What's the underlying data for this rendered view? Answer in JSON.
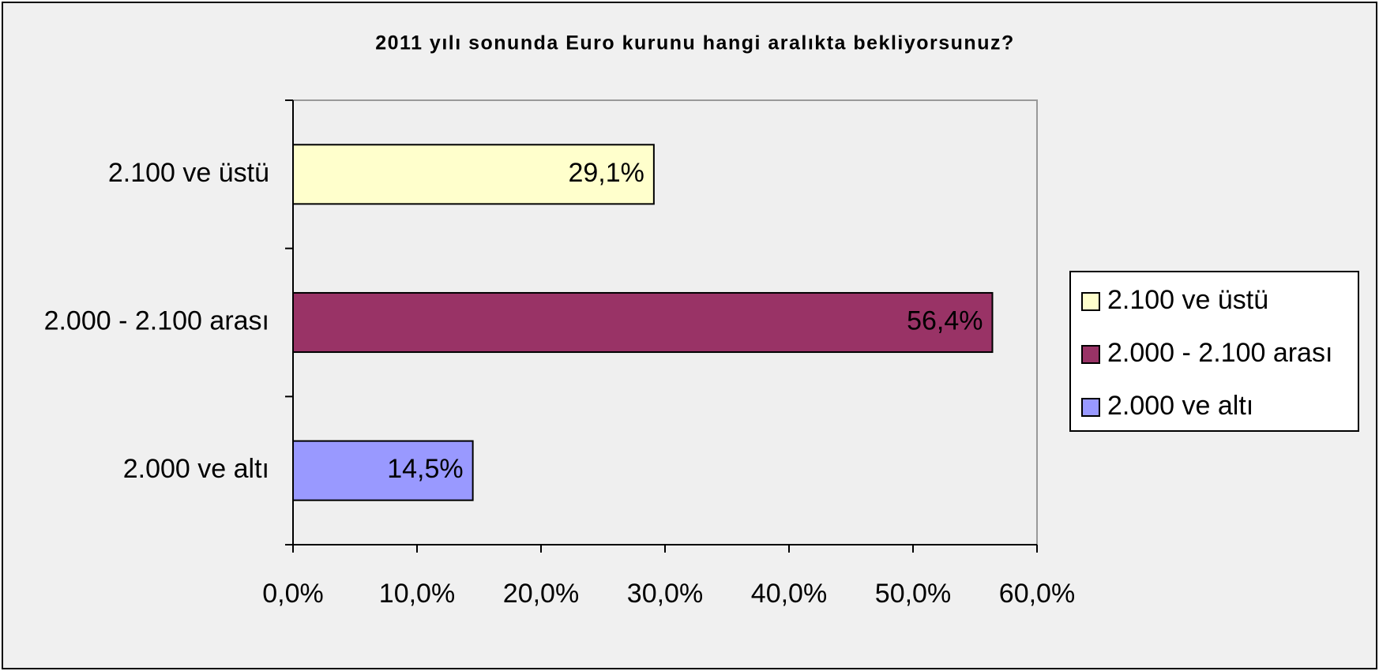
{
  "chart_data": {
    "type": "bar",
    "orientation": "horizontal",
    "title": "2011 yılı sonunda Euro kurunu hangi aralıkta bekliyorsunuz?",
    "categories": [
      "2.100 ve üstü",
      "2.000 - 2.100 arası",
      "2.000 ve altı"
    ],
    "values": [
      29.1,
      56.4,
      14.5
    ],
    "value_labels": [
      "29,1%",
      "56,4%",
      "14,5%"
    ],
    "colors": [
      "#ffffcc",
      "#993366",
      "#9999ff"
    ],
    "xlim": [
      0,
      60
    ],
    "xticks": [
      {
        "value": 0,
        "label": "0,0%"
      },
      {
        "value": 10,
        "label": "10,0%"
      },
      {
        "value": 20,
        "label": "20,0%"
      },
      {
        "value": 30,
        "label": "30,0%"
      },
      {
        "value": 40,
        "label": "40,0%"
      },
      {
        "value": 50,
        "label": "50,0%"
      },
      {
        "value": 60,
        "label": "60,0%"
      }
    ],
    "legend": "right"
  }
}
